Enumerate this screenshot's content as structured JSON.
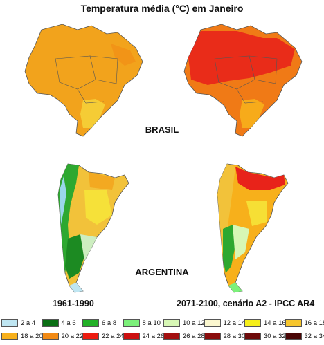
{
  "title": "Temperatura média (°C) em Janeiro",
  "countries": {
    "brasil": "BRASIL",
    "argentina": "ARGENTINA"
  },
  "periods": {
    "baseline": "1961-1990",
    "future": "2071-2100, cenário A2 - IPCC AR4"
  },
  "legend": [
    {
      "label": "2 a 4",
      "color": "#bfe6f2"
    },
    {
      "label": "4 a 6",
      "color": "#0a6e14"
    },
    {
      "label": "6 a 8",
      "color": "#22b027"
    },
    {
      "label": "8 a 10",
      "color": "#7cf07a"
    },
    {
      "label": "10 a 12",
      "color": "#d7f7b5"
    },
    {
      "label": "12 a 14",
      "color": "#fbf7cf"
    },
    {
      "label": "14 a 16",
      "color": "#f6ef1a"
    },
    {
      "label": "16 a 18",
      "color": "#f7c62d"
    },
    {
      "label": "18 a 20",
      "color": "#f7b01b"
    },
    {
      "label": "20 a 22",
      "color": "#f28a14"
    },
    {
      "label": "22 a 24",
      "color": "#ec1c10"
    },
    {
      "label": "24 a 26",
      "color": "#cc1010"
    },
    {
      "label": "26 a 28",
      "color": "#a30f0f"
    },
    {
      "label": "28 a 30",
      "color": "#8a0c0c"
    },
    {
      "label": "30 a 32",
      "color": "#6e0a0a"
    },
    {
      "label": "32 a 34",
      "color": "#4a0606"
    }
  ]
}
